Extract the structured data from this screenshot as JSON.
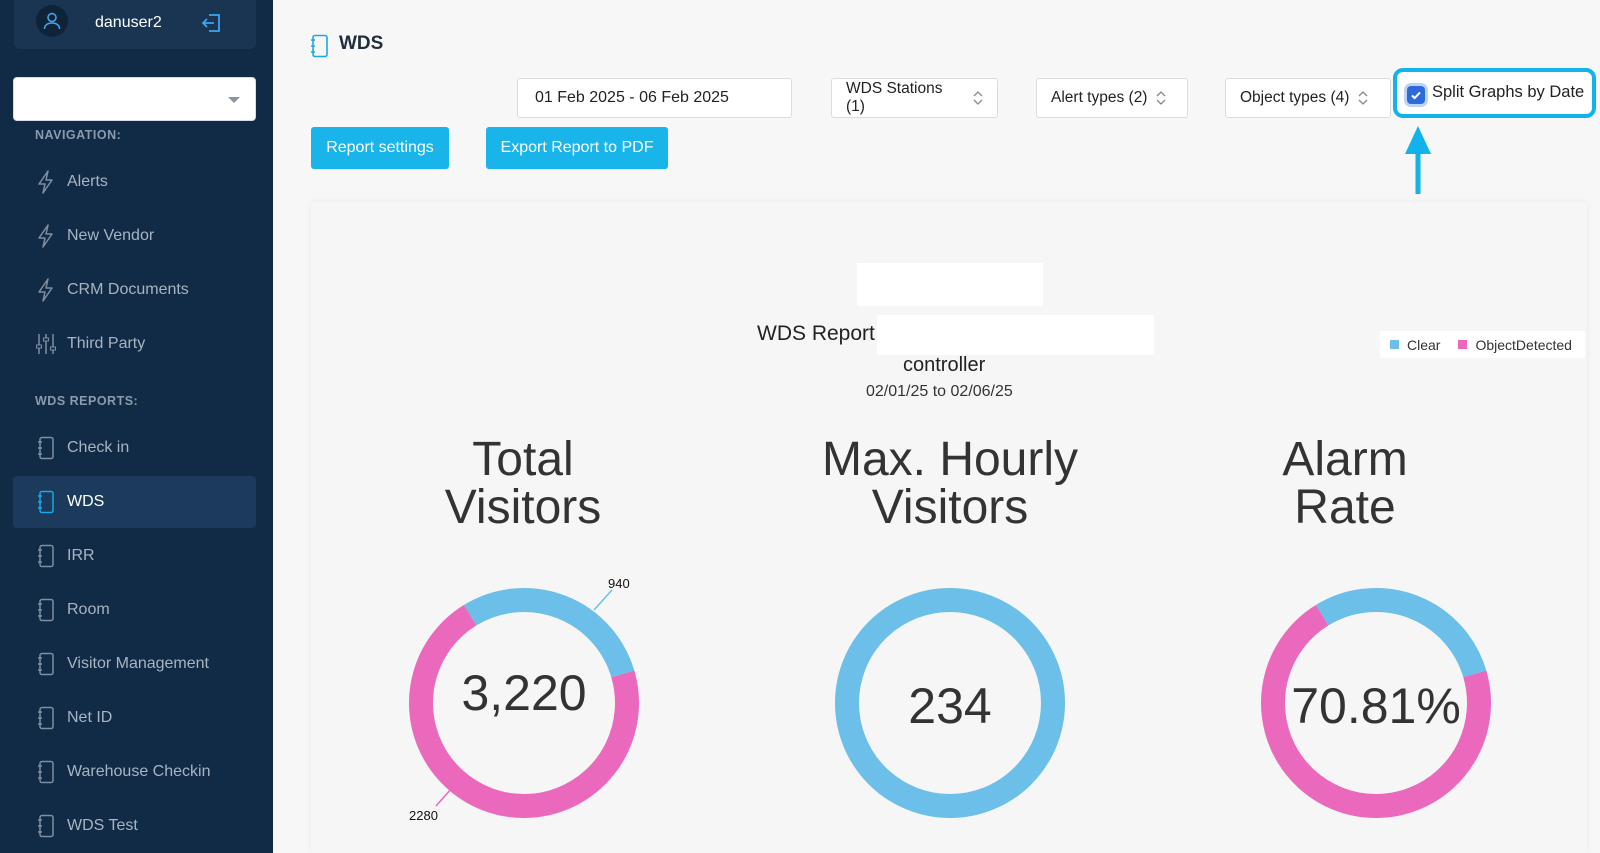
{
  "user": {
    "name": "danuser2"
  },
  "sidebar": {
    "org_select_value": "",
    "nav_heading": "NAVIGATION:",
    "nav_items": [
      {
        "label": "Alerts",
        "icon": "bolt-icon"
      },
      {
        "label": "New Vendor",
        "icon": "bolt-icon"
      },
      {
        "label": "CRM Documents",
        "icon": "bolt-icon"
      },
      {
        "label": "Third Party",
        "icon": "sliders-icon"
      }
    ],
    "wds_heading": "WDS REPORTS:",
    "wds_items": [
      {
        "label": "Check in",
        "icon": "notebook-icon"
      },
      {
        "label": "WDS",
        "icon": "notebook-icon",
        "active": true
      },
      {
        "label": "IRR",
        "icon": "notebook-icon"
      },
      {
        "label": "Room",
        "icon": "notebook-icon"
      },
      {
        "label": "Visitor Management",
        "icon": "notebook-icon"
      },
      {
        "label": "Net ID",
        "icon": "notebook-icon"
      },
      {
        "label": "Warehouse Checkin",
        "icon": "notebook-icon"
      },
      {
        "label": "WDS Test",
        "icon": "notebook-icon"
      }
    ]
  },
  "header": {
    "title": "WDS"
  },
  "filters": {
    "date_range": "01 Feb 2025 - 06 Feb 2025",
    "stations": "WDS Stations (1)",
    "alert_types": "Alert types (2)",
    "object_types": "Object types (4)",
    "split_label": "Split Graphs by Date",
    "split_checked": true
  },
  "buttons": {
    "report_settings": "Report settings",
    "export_pdf": "Export Report to PDF"
  },
  "report": {
    "title": "WDS Report",
    "subtitle": "controller",
    "range": "02/01/25 to 02/06/25",
    "legend": [
      {
        "name": "Clear",
        "color": "#6bbfe8"
      },
      {
        "name": "ObjectDetected",
        "color": "#ea69bd"
      }
    ]
  },
  "chart_data": [
    {
      "type": "pie",
      "title": "Total Visitors",
      "center_value": "3,220",
      "slices": [
        {
          "name": "Clear",
          "value": 940,
          "label": "940",
          "color": "#6bbfe8"
        },
        {
          "name": "ObjectDetected",
          "value": 2280,
          "label": "2280",
          "color": "#ea69bd"
        }
      ]
    },
    {
      "type": "pie",
      "title": "Max. Hourly Visitors",
      "center_value": "234",
      "slices": [
        {
          "name": "Clear",
          "value": 234,
          "color": "#6bbfe8"
        }
      ]
    },
    {
      "type": "pie",
      "title": "Alarm Rate",
      "center_value": "70.81%",
      "slices": [
        {
          "name": "Clear",
          "value": 29.19,
          "color": "#6bbfe8"
        },
        {
          "name": "ObjectDetected",
          "value": 70.81,
          "color": "#ea69bd"
        }
      ]
    }
  ]
}
